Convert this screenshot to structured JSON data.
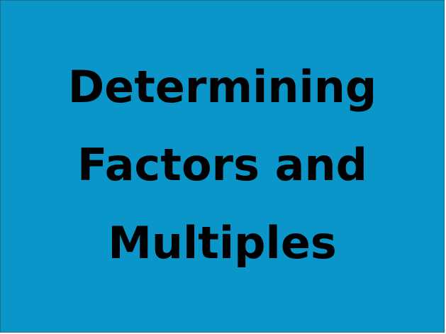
{
  "slide": {
    "background_color": "#0a96c8",
    "text_color": "#000000",
    "title_lines": [
      "Determining",
      "Factors and",
      "Multiples"
    ]
  }
}
